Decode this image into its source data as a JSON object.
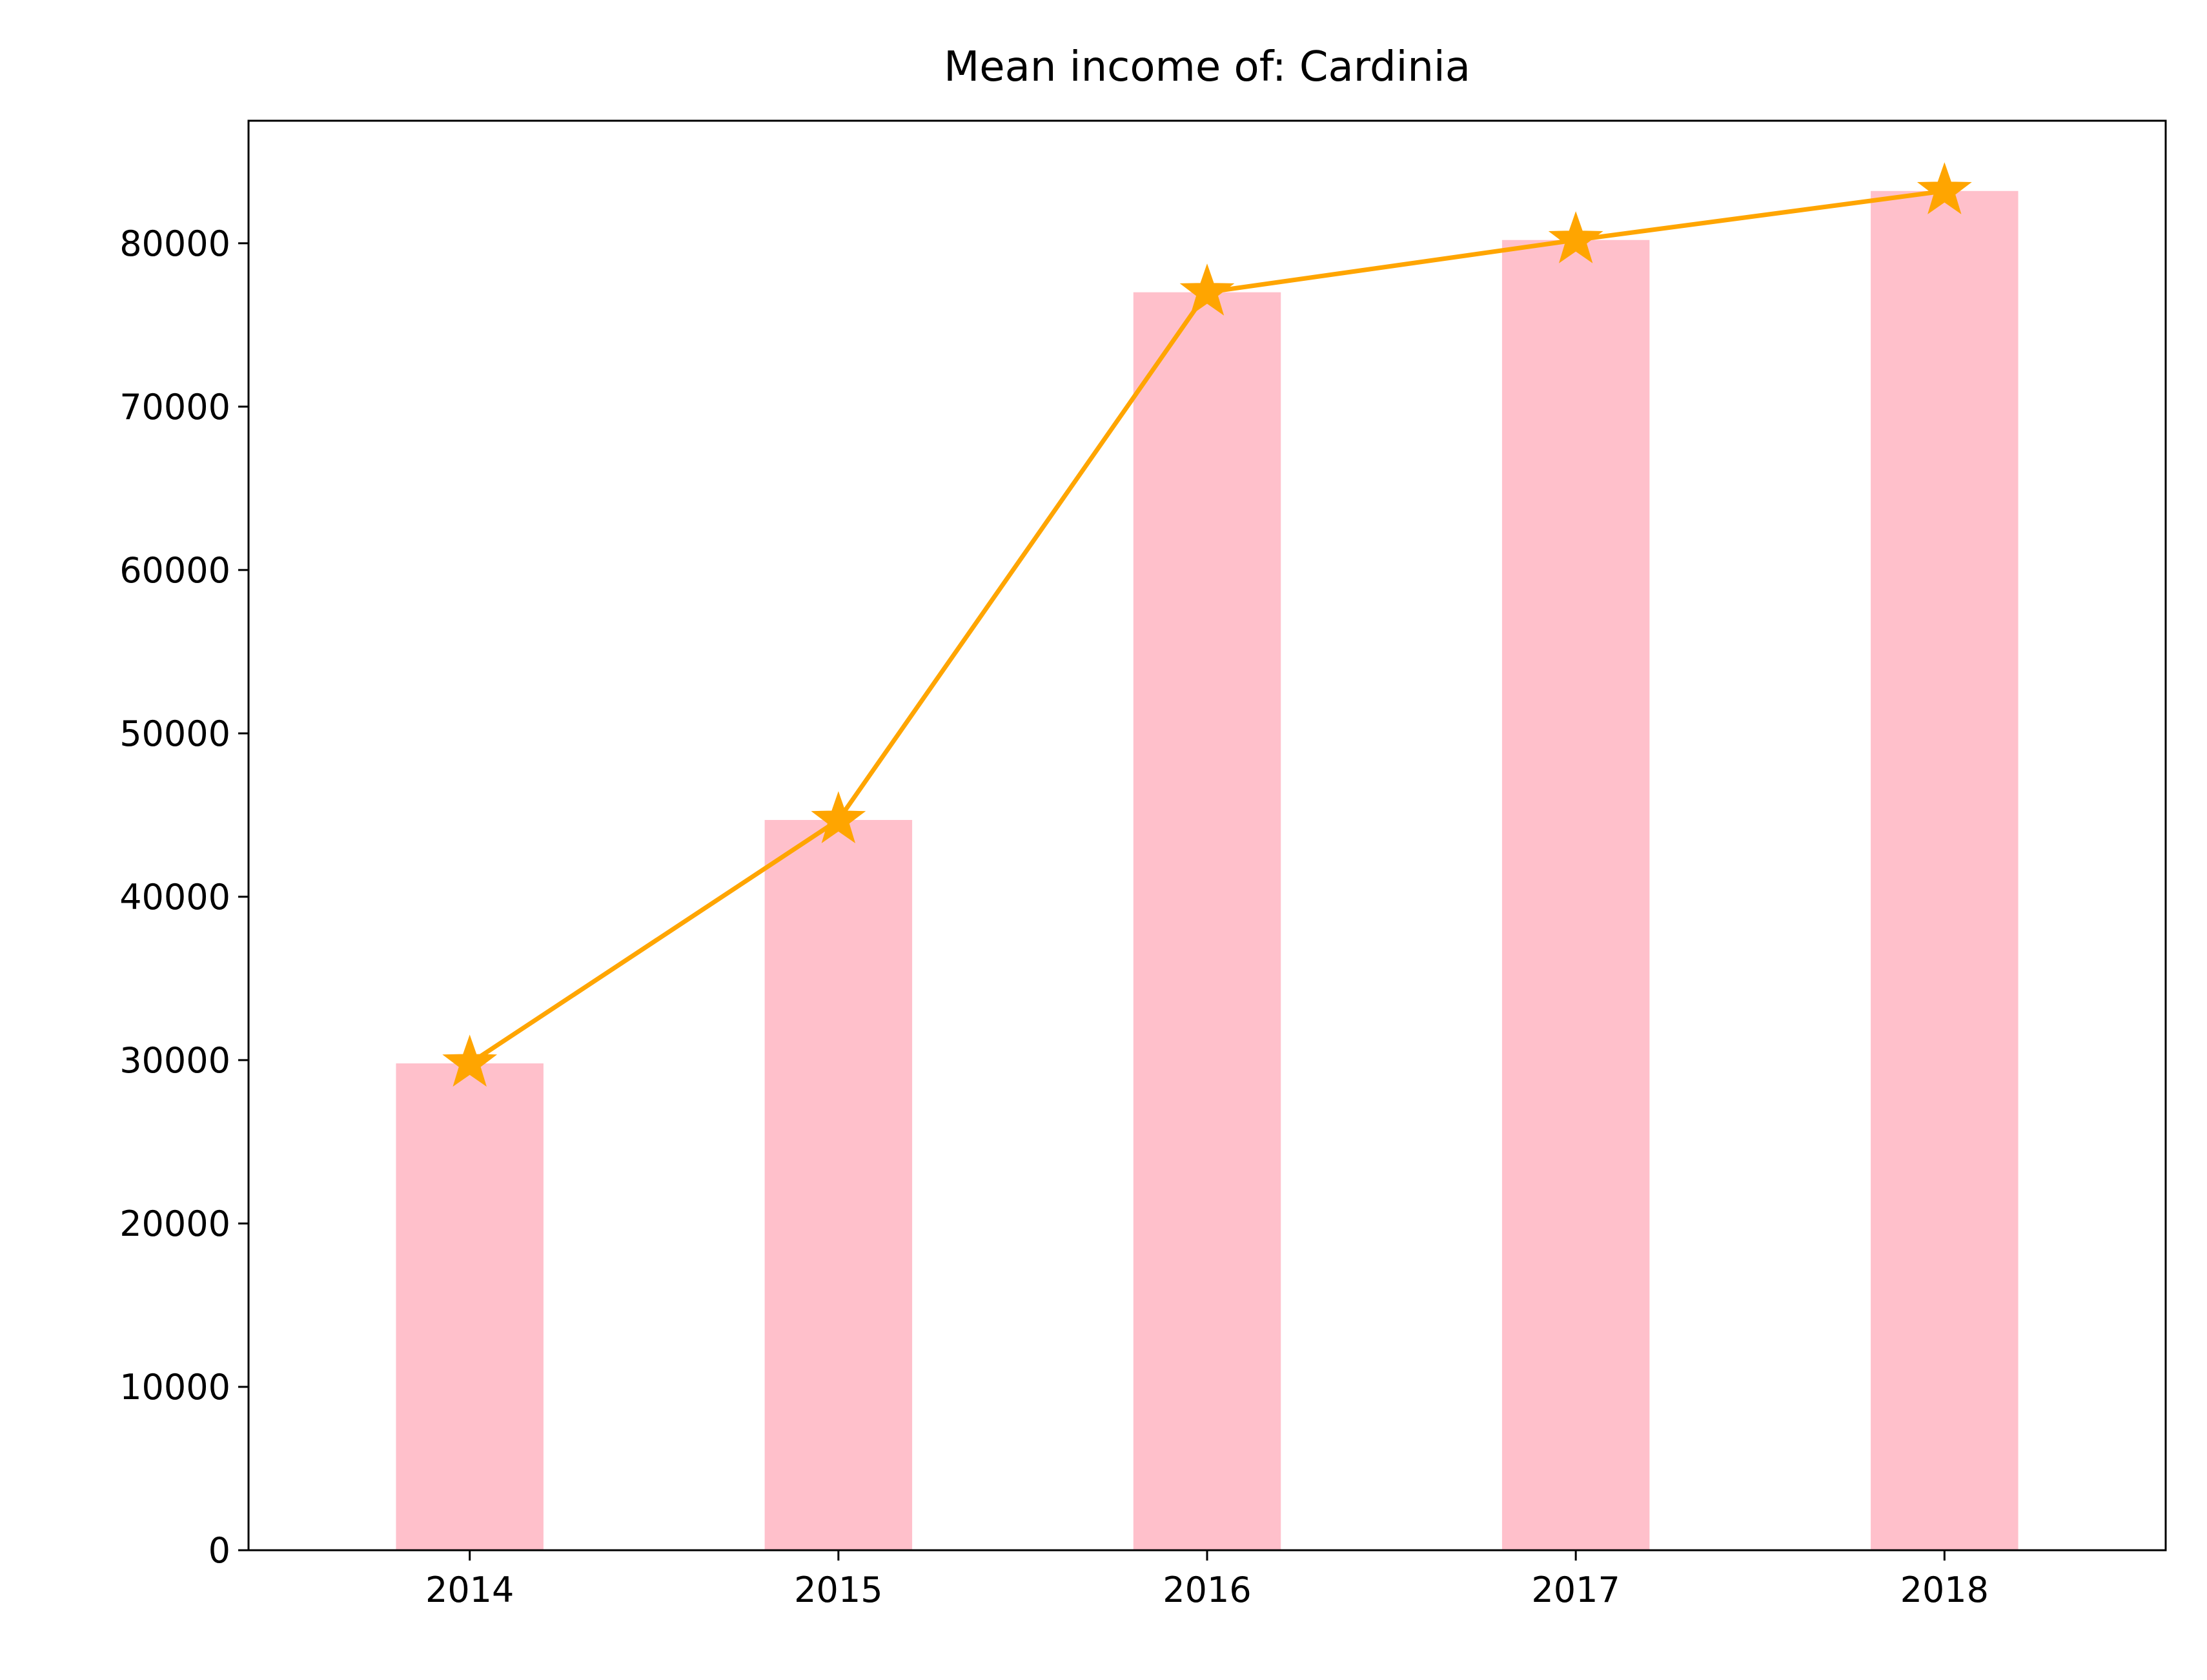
{
  "chart_data": {
    "type": "bar",
    "title": "Mean income of: Cardinia",
    "xlabel": "",
    "ylabel": "",
    "categories": [
      "2014",
      "2015",
      "2016",
      "2017",
      "2018"
    ],
    "values": [
      29800,
      44700,
      77000,
      80200,
      83200
    ],
    "line_values": [
      29800,
      44700,
      77000,
      80200,
      83200
    ],
    "ylim": [
      0,
      87500
    ],
    "yticks": [
      0,
      10000,
      20000,
      30000,
      40000,
      50000,
      60000,
      70000,
      80000
    ],
    "ytick_labels": [
      "0",
      "10000",
      "20000",
      "30000",
      "40000",
      "50000",
      "60000",
      "70000",
      "80000"
    ],
    "grid": false,
    "legend": "none",
    "bar_color": "#ffc0cb",
    "line_color": "#ffa500",
    "line_marker": "star"
  }
}
